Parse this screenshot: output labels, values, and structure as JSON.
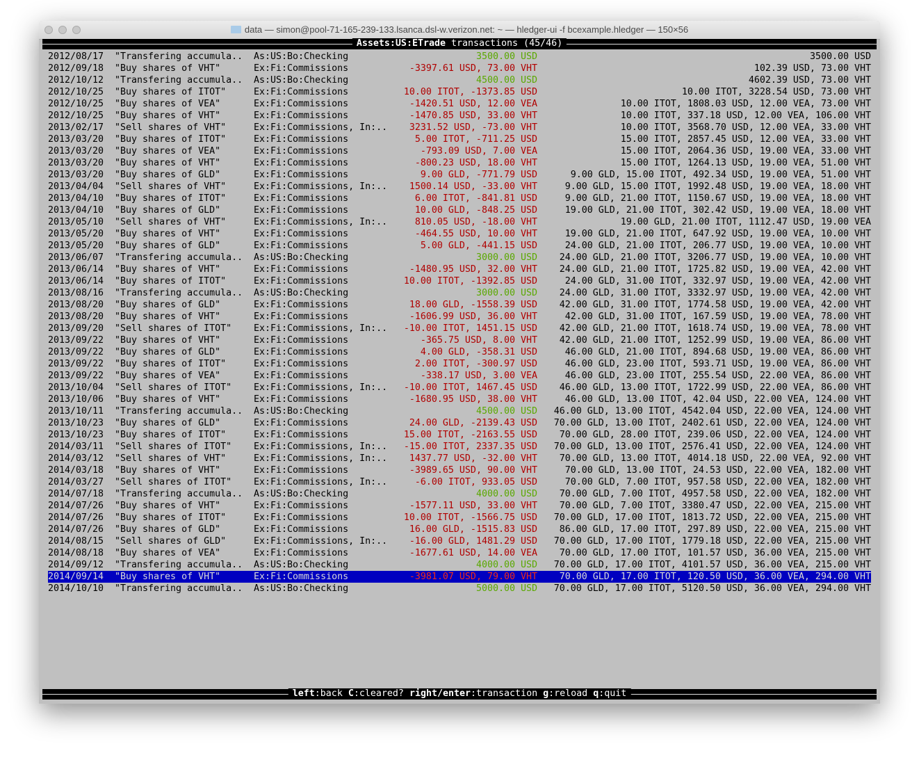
{
  "window": {
    "title": "data — simon@pool-71-165-239-133.lsanca.dsl-w.verizon.net: ~ — hledger-ui -f bcexample.hledger — 150×56"
  },
  "header": {
    "account": "Assets:US:ETrade",
    "suffix": " transactions (45/46)"
  },
  "colors": {
    "positive": "#5aa800",
    "negative": "#b00000",
    "selection": "#0000c0",
    "background": "#c0c0c0"
  },
  "selected_index": 44,
  "rows": [
    [
      "2012/08/17",
      "\"Transfering accumula..",
      "As:US:Bo:Checking",
      "3500.00 USD",
      "3500.00 USD"
    ],
    [
      "2012/09/18",
      "\"Buy shares of VHT\"",
      "Ex:Fi:Commissions",
      "-3397.61 USD, 73.00 VHT",
      "102.39 USD, 73.00 VHT"
    ],
    [
      "2012/10/12",
      "\"Transfering accumula..",
      "As:US:Bo:Checking",
      "4500.00 USD",
      "4602.39 USD, 73.00 VHT"
    ],
    [
      "2012/10/25",
      "\"Buy shares of ITOT\"",
      "Ex:Fi:Commissions",
      "10.00 ITOT, -1373.85 USD",
      "10.00 ITOT, 3228.54 USD, 73.00 VHT"
    ],
    [
      "2012/10/25",
      "\"Buy shares of VEA\"",
      "Ex:Fi:Commissions",
      "-1420.51 USD, 12.00 VEA",
      "10.00 ITOT, 1808.03 USD, 12.00 VEA, 73.00 VHT"
    ],
    [
      "2012/10/25",
      "\"Buy shares of VHT\"",
      "Ex:Fi:Commissions",
      "-1470.85 USD, 33.00 VHT",
      "10.00 ITOT, 337.18 USD, 12.00 VEA, 106.00 VHT"
    ],
    [
      "2013/02/17",
      "\"Sell shares of VHT\"",
      "Ex:Fi:Commissions, In:..",
      "3231.52 USD, -73.00 VHT",
      "10.00 ITOT, 3568.70 USD, 12.00 VEA, 33.00 VHT"
    ],
    [
      "2013/03/20",
      "\"Buy shares of ITOT\"",
      "Ex:Fi:Commissions",
      "5.00 ITOT, -711.25 USD",
      "15.00 ITOT, 2857.45 USD, 12.00 VEA, 33.00 VHT"
    ],
    [
      "2013/03/20",
      "\"Buy shares of VEA\"",
      "Ex:Fi:Commissions",
      "-793.09 USD, 7.00 VEA",
      "15.00 ITOT, 2064.36 USD, 19.00 VEA, 33.00 VHT"
    ],
    [
      "2013/03/20",
      "\"Buy shares of VHT\"",
      "Ex:Fi:Commissions",
      "-800.23 USD, 18.00 VHT",
      "15.00 ITOT, 1264.13 USD, 19.00 VEA, 51.00 VHT"
    ],
    [
      "2013/03/20",
      "\"Buy shares of GLD\"",
      "Ex:Fi:Commissions",
      "9.00 GLD, -771.79 USD",
      "9.00 GLD, 15.00 ITOT, 492.34 USD, 19.00 VEA, 51.00 VHT"
    ],
    [
      "2013/04/04",
      "\"Sell shares of VHT\"",
      "Ex:Fi:Commissions, In:..",
      "1500.14 USD, -33.00 VHT",
      "9.00 GLD, 15.00 ITOT, 1992.48 USD, 19.00 VEA, 18.00 VHT"
    ],
    [
      "2013/04/10",
      "\"Buy shares of ITOT\"",
      "Ex:Fi:Commissions",
      "6.00 ITOT, -841.81 USD",
      "9.00 GLD, 21.00 ITOT, 1150.67 USD, 19.00 VEA, 18.00 VHT"
    ],
    [
      "2013/04/10",
      "\"Buy shares of GLD\"",
      "Ex:Fi:Commissions",
      "10.00 GLD, -848.25 USD",
      "19.00 GLD, 21.00 ITOT, 302.42 USD, 19.00 VEA, 18.00 VHT"
    ],
    [
      "2013/05/10",
      "\"Sell shares of VHT\"",
      "Ex:Fi:Commissions, In:..",
      "810.05 USD, -18.00 VHT",
      "19.00 GLD, 21.00 ITOT, 1112.47 USD, 19.00 VEA"
    ],
    [
      "2013/05/20",
      "\"Buy shares of VHT\"",
      "Ex:Fi:Commissions",
      "-464.55 USD, 10.00 VHT",
      "19.00 GLD, 21.00 ITOT, 647.92 USD, 19.00 VEA, 10.00 VHT"
    ],
    [
      "2013/05/20",
      "\"Buy shares of GLD\"",
      "Ex:Fi:Commissions",
      "5.00 GLD, -441.15 USD",
      "24.00 GLD, 21.00 ITOT, 206.77 USD, 19.00 VEA, 10.00 VHT"
    ],
    [
      "2013/06/07",
      "\"Transfering accumula..",
      "As:US:Bo:Checking",
      "3000.00 USD",
      "24.00 GLD, 21.00 ITOT, 3206.77 USD, 19.00 VEA, 10.00 VHT"
    ],
    [
      "2013/06/14",
      "\"Buy shares of VHT\"",
      "Ex:Fi:Commissions",
      "-1480.95 USD, 32.00 VHT",
      "24.00 GLD, 21.00 ITOT, 1725.82 USD, 19.00 VEA, 42.00 VHT"
    ],
    [
      "2013/06/14",
      "\"Buy shares of ITOT\"",
      "Ex:Fi:Commissions",
      "10.00 ITOT, -1392.85 USD",
      "24.00 GLD, 31.00 ITOT, 332.97 USD, 19.00 VEA, 42.00 VHT"
    ],
    [
      "2013/08/16",
      "\"Transfering accumula..",
      "As:US:Bo:Checking",
      "3000.00 USD",
      "24.00 GLD, 31.00 ITOT, 3332.97 USD, 19.00 VEA, 42.00 VHT"
    ],
    [
      "2013/08/20",
      "\"Buy shares of GLD\"",
      "Ex:Fi:Commissions",
      "18.00 GLD, -1558.39 USD",
      "42.00 GLD, 31.00 ITOT, 1774.58 USD, 19.00 VEA, 42.00 VHT"
    ],
    [
      "2013/08/20",
      "\"Buy shares of VHT\"",
      "Ex:Fi:Commissions",
      "-1606.99 USD, 36.00 VHT",
      "42.00 GLD, 31.00 ITOT, 167.59 USD, 19.00 VEA, 78.00 VHT"
    ],
    [
      "2013/09/20",
      "\"Sell shares of ITOT\"",
      "Ex:Fi:Commissions, In:..",
      "-10.00 ITOT, 1451.15 USD",
      "42.00 GLD, 21.00 ITOT, 1618.74 USD, 19.00 VEA, 78.00 VHT"
    ],
    [
      "2013/09/22",
      "\"Buy shares of VHT\"",
      "Ex:Fi:Commissions",
      "-365.75 USD, 8.00 VHT",
      "42.00 GLD, 21.00 ITOT, 1252.99 USD, 19.00 VEA, 86.00 VHT"
    ],
    [
      "2013/09/22",
      "\"Buy shares of GLD\"",
      "Ex:Fi:Commissions",
      "4.00 GLD, -358.31 USD",
      "46.00 GLD, 21.00 ITOT, 894.68 USD, 19.00 VEA, 86.00 VHT"
    ],
    [
      "2013/09/22",
      "\"Buy shares of ITOT\"",
      "Ex:Fi:Commissions",
      "2.00 ITOT, -300.97 USD",
      "46.00 GLD, 23.00 ITOT, 593.71 USD, 19.00 VEA, 86.00 VHT"
    ],
    [
      "2013/09/22",
      "\"Buy shares of VEA\"",
      "Ex:Fi:Commissions",
      "-338.17 USD, 3.00 VEA",
      "46.00 GLD, 23.00 ITOT, 255.54 USD, 22.00 VEA, 86.00 VHT"
    ],
    [
      "2013/10/04",
      "\"Sell shares of ITOT\"",
      "Ex:Fi:Commissions, In:..",
      "-10.00 ITOT, 1467.45 USD",
      "46.00 GLD, 13.00 ITOT, 1722.99 USD, 22.00 VEA, 86.00 VHT"
    ],
    [
      "2013/10/06",
      "\"Buy shares of VHT\"",
      "Ex:Fi:Commissions",
      "-1680.95 USD, 38.00 VHT",
      "46.00 GLD, 13.00 ITOT, 42.04 USD, 22.00 VEA, 124.00 VHT"
    ],
    [
      "2013/10/11",
      "\"Transfering accumula..",
      "As:US:Bo:Checking",
      "4500.00 USD",
      "46.00 GLD, 13.00 ITOT, 4542.04 USD, 22.00 VEA, 124.00 VHT"
    ],
    [
      "2013/10/23",
      "\"Buy shares of GLD\"",
      "Ex:Fi:Commissions",
      "24.00 GLD, -2139.43 USD",
      "70.00 GLD, 13.00 ITOT, 2402.61 USD, 22.00 VEA, 124.00 VHT"
    ],
    [
      "2013/10/23",
      "\"Buy shares of ITOT\"",
      "Ex:Fi:Commissions",
      "15.00 ITOT, -2163.55 USD",
      "70.00 GLD, 28.00 ITOT, 239.06 USD, 22.00 VEA, 124.00 VHT"
    ],
    [
      "2014/03/11",
      "\"Sell shares of ITOT\"",
      "Ex:Fi:Commissions, In:..",
      "-15.00 ITOT, 2337.35 USD",
      "70.00 GLD, 13.00 ITOT, 2576.41 USD, 22.00 VEA, 124.00 VHT"
    ],
    [
      "2014/03/12",
      "\"Sell shares of VHT\"",
      "Ex:Fi:Commissions, In:..",
      "1437.77 USD, -32.00 VHT",
      "70.00 GLD, 13.00 ITOT, 4014.18 USD, 22.00 VEA, 92.00 VHT"
    ],
    [
      "2014/03/18",
      "\"Buy shares of VHT\"",
      "Ex:Fi:Commissions",
      "-3989.65 USD, 90.00 VHT",
      "70.00 GLD, 13.00 ITOT, 24.53 USD, 22.00 VEA, 182.00 VHT"
    ],
    [
      "2014/03/27",
      "\"Sell shares of ITOT\"",
      "Ex:Fi:Commissions, In:..",
      "-6.00 ITOT, 933.05 USD",
      "70.00 GLD, 7.00 ITOT, 957.58 USD, 22.00 VEA, 182.00 VHT"
    ],
    [
      "2014/07/18",
      "\"Transfering accumula..",
      "As:US:Bo:Checking",
      "4000.00 USD",
      "70.00 GLD, 7.00 ITOT, 4957.58 USD, 22.00 VEA, 182.00 VHT"
    ],
    [
      "2014/07/26",
      "\"Buy shares of VHT\"",
      "Ex:Fi:Commissions",
      "-1577.11 USD, 33.00 VHT",
      "70.00 GLD, 7.00 ITOT, 3380.47 USD, 22.00 VEA, 215.00 VHT"
    ],
    [
      "2014/07/26",
      "\"Buy shares of ITOT\"",
      "Ex:Fi:Commissions",
      "10.00 ITOT, -1566.75 USD",
      "70.00 GLD, 17.00 ITOT, 1813.72 USD, 22.00 VEA, 215.00 VHT"
    ],
    [
      "2014/07/26",
      "\"Buy shares of GLD\"",
      "Ex:Fi:Commissions",
      "16.00 GLD, -1515.83 USD",
      "86.00 GLD, 17.00 ITOT, 297.89 USD, 22.00 VEA, 215.00 VHT"
    ],
    [
      "2014/08/15",
      "\"Sell shares of GLD\"",
      "Ex:Fi:Commissions, In:..",
      "-16.00 GLD, 1481.29 USD",
      "70.00 GLD, 17.00 ITOT, 1779.18 USD, 22.00 VEA, 215.00 VHT"
    ],
    [
      "2014/08/18",
      "\"Buy shares of VEA\"",
      "Ex:Fi:Commissions",
      "-1677.61 USD, 14.00 VEA",
      "70.00 GLD, 17.00 ITOT, 101.57 USD, 36.00 VEA, 215.00 VHT"
    ],
    [
      "2014/09/12",
      "\"Transfering accumula..",
      "As:US:Bo:Checking",
      "4000.00 USD",
      "70.00 GLD, 17.00 ITOT, 4101.57 USD, 36.00 VEA, 215.00 VHT"
    ],
    [
      "2014/09/14",
      "\"Buy shares of VHT\"",
      "Ex:Fi:Commissions",
      "-3981.07 USD, 79.00 VHT",
      "70.00 GLD, 17.00 ITOT, 120.50 USD, 36.00 VEA, 294.00 VHT"
    ],
    [
      "2014/10/10",
      "\"Transfering accumula..",
      "As:US:Bo:Checking",
      "5000.00 USD",
      "70.00 GLD, 17.00 ITOT, 5120.50 USD, 36.00 VEA, 294.00 VHT"
    ]
  ],
  "footer": {
    "keys": [
      {
        "key": "left",
        "label": "back"
      },
      {
        "key": "C",
        "label": "cleared?"
      },
      {
        "key": "right/enter",
        "label": "transaction"
      },
      {
        "key": "g",
        "label": "reload"
      },
      {
        "key": "q",
        "label": "quit"
      }
    ]
  }
}
